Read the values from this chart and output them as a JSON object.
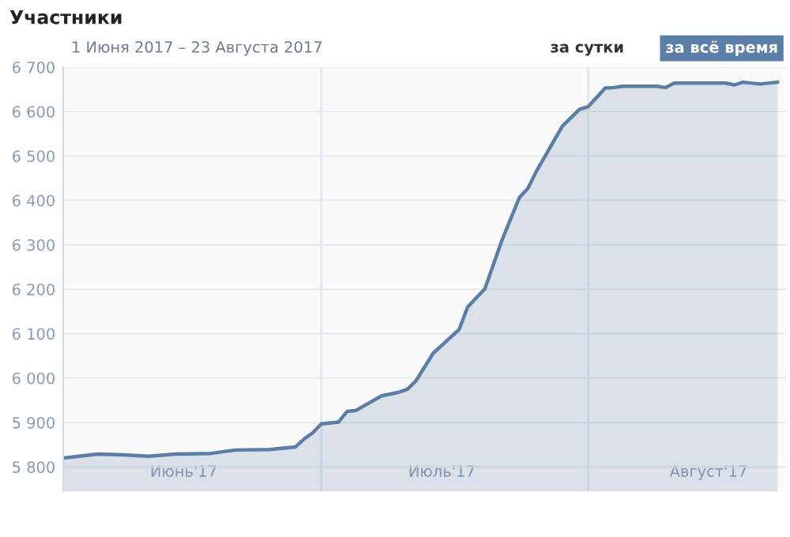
{
  "chart_data": {
    "type": "area",
    "title": "Участники",
    "subtitle": "1 Июня 2017 – 23 Августа 2017",
    "annotations": [
      "за сутки",
      "за всё время"
    ],
    "x": [
      "2017-06-01",
      "2017-06-05",
      "2017-06-08",
      "2017-06-11",
      "2017-06-14",
      "2017-06-18",
      "2017-06-21",
      "2017-06-25",
      "2017-06-28",
      "2017-06-29",
      "2017-06-30",
      "2017-07-01",
      "2017-07-03",
      "2017-07-04",
      "2017-07-05",
      "2017-07-08",
      "2017-07-10",
      "2017-07-11",
      "2017-07-12",
      "2017-07-14",
      "2017-07-17",
      "2017-07-18",
      "2017-07-20",
      "2017-07-22",
      "2017-07-24",
      "2017-07-25",
      "2017-07-26",
      "2017-07-29",
      "2017-07-31",
      "2017-08-01",
      "2017-08-03",
      "2017-08-04",
      "2017-08-05",
      "2017-08-09",
      "2017-08-10",
      "2017-08-11",
      "2017-08-17",
      "2017-08-18",
      "2017-08-19",
      "2017-08-21",
      "2017-08-23"
    ],
    "series": [
      {
        "color": "#5b7ea6",
        "values": [
          5820,
          5829,
          5827,
          5824,
          5829,
          5830,
          5838,
          5839,
          5845,
          5863,
          5877,
          5897,
          5901,
          5925,
          5927,
          5960,
          5968,
          5975,
          5994,
          6056,
          6109,
          6160,
          6201,
          6311,
          6406,
          6427,
          6466,
          6567,
          6605,
          6611,
          6653,
          6654,
          6657,
          6657,
          6654,
          6664,
          6664,
          6660,
          6666,
          6662,
          6666
        ]
      }
    ],
    "xlim": [
      "2017-06-01",
      "2017-08-24"
    ],
    "xticks": [
      {
        "value": "2017-06-15",
        "label": "Июнь'17"
      },
      {
        "value": "2017-07-15",
        "label": "Июль'17"
      },
      {
        "value": "2017-08-15",
        "label": "Август'17"
      }
    ],
    "ylim": [
      5745,
      6700
    ],
    "yticks": [
      {
        "value": 5800,
        "label": "5 800"
      },
      {
        "value": 5900,
        "label": "5 900"
      },
      {
        "value": 6000,
        "label": "6 000"
      },
      {
        "value": 6100,
        "label": "6 100"
      },
      {
        "value": 6200,
        "label": "6 200"
      },
      {
        "value": 6300,
        "label": "6 300"
      },
      {
        "value": 6400,
        "label": "6 400"
      },
      {
        "value": 6500,
        "label": "6 500"
      },
      {
        "value": 6600,
        "label": "6 600"
      },
      {
        "value": 6700,
        "label": "6 700"
      }
    ],
    "ref_lines": [
      {
        "axis": "x",
        "value": "2017-07-01",
        "color": "#e3e7ec"
      },
      {
        "axis": "x",
        "value": "2017-08-01",
        "color": "#e3e7ec"
      }
    ],
    "grid": "y",
    "marker": "none",
    "line_style": "solid"
  }
}
